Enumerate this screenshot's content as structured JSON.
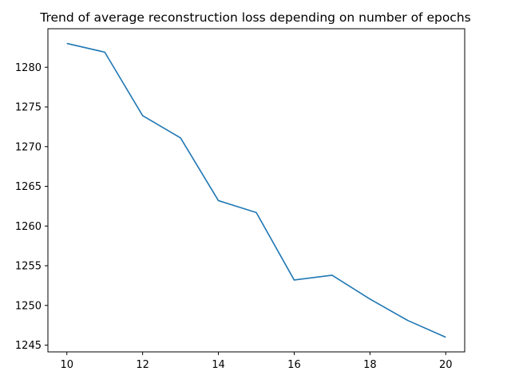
{
  "chart_data": {
    "type": "line",
    "title": "Trend of average reconstruction loss depending on number of epochs",
    "xlabel": "",
    "ylabel": "",
    "xlim": [
      9.5,
      20.5
    ],
    "ylim": [
      1244.15,
      1284.85
    ],
    "x_ticks": [
      10,
      12,
      14,
      16,
      18,
      20
    ],
    "y_ticks": [
      1245,
      1250,
      1255,
      1260,
      1265,
      1270,
      1275,
      1280
    ],
    "grid": false,
    "legend": "none",
    "series": [
      {
        "color": "#1f77b4",
        "x": [
          10,
          11,
          12,
          13,
          14,
          15,
          16,
          17,
          18,
          19,
          20
        ],
        "y": [
          1283.0,
          1281.9,
          1273.9,
          1271.1,
          1263.2,
          1261.7,
          1253.2,
          1253.8,
          1250.8,
          1248.1,
          1246.0
        ]
      }
    ]
  }
}
